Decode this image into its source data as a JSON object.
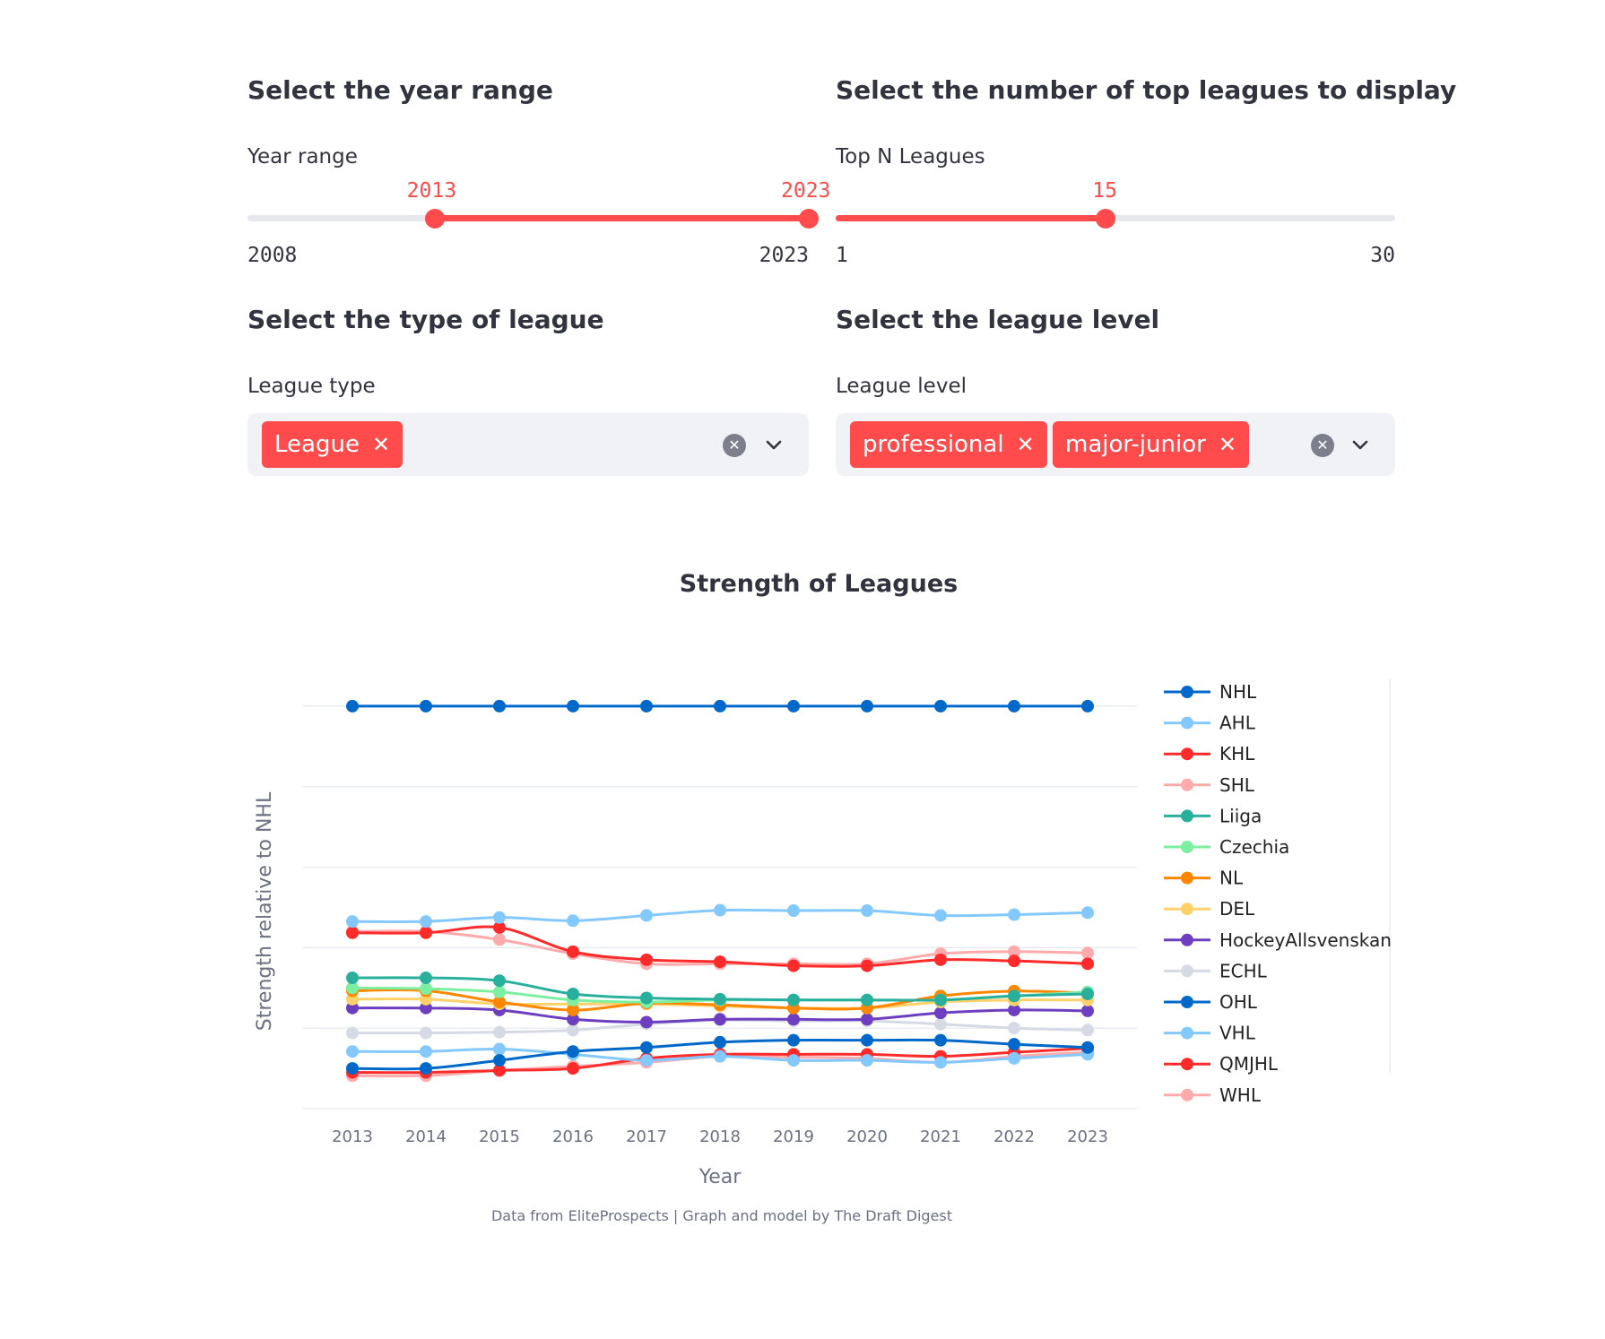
{
  "year_range": {
    "heading": "Select the year range",
    "label": "Year range",
    "min": 2008,
    "max": 2023,
    "value_low": 2013,
    "value_high": 2023,
    "min_label": "2008",
    "max_label": "2023",
    "value_low_label": "2013",
    "value_high_label": "2023"
  },
  "top_n": {
    "heading": "Select the number of top leagues to display",
    "label": "Top N Leagues",
    "min": 1,
    "max": 30,
    "value": 15,
    "min_label": "1",
    "max_label": "30",
    "value_label": "15"
  },
  "league_type": {
    "heading": "Select the type of league",
    "label": "League type",
    "selected": [
      "League"
    ],
    "remove_glyph": "✕",
    "clear_glyph": "✕",
    "icons": [
      "close-icon",
      "chevron-down-icon"
    ]
  },
  "league_level": {
    "heading": "Select the league level",
    "label": "League level",
    "selected": [
      "professional",
      "major-junior"
    ],
    "remove_glyph": "✕",
    "clear_glyph": "✕",
    "icons": [
      "close-icon",
      "chevron-down-icon"
    ]
  },
  "colors": {
    "accent": "#ff4b4b",
    "track": "#e6e8ee",
    "select_bg": "#f0f2f6",
    "grid": "#e5e7ef"
  },
  "chart_data": {
    "type": "line",
    "title": "Strength of Leagues",
    "xlabel": "Year",
    "ylabel": "Strength relative to NHL",
    "x": [
      2013,
      2014,
      2015,
      2016,
      2017,
      2018,
      2019,
      2020,
      2021,
      2022,
      2023
    ],
    "ylim": [
      0,
      1.1
    ],
    "y_gridlines": [
      0,
      0.2,
      0.4,
      0.6,
      0.8,
      1.0
    ],
    "y_tick_labels_visible": false,
    "legend_position": "right",
    "annotation": "Data from EliteProspects | Graph and model by The Draft Digest",
    "series": [
      {
        "name": "NHL",
        "color": "#0068c9",
        "values": [
          1.0,
          1.0,
          1.0,
          1.0,
          1.0,
          1.0,
          1.0,
          1.0,
          1.0,
          1.0,
          1.0
        ]
      },
      {
        "name": "AHL",
        "color": "#83c9ff",
        "values": [
          0.465,
          0.465,
          0.475,
          0.467,
          0.48,
          0.493,
          0.492,
          0.492,
          0.48,
          0.482,
          0.487
        ]
      },
      {
        "name": "KHL",
        "color": "#ff2b2b",
        "values": [
          0.437,
          0.437,
          0.45,
          0.39,
          0.37,
          0.365,
          0.355,
          0.355,
          0.37,
          0.367,
          0.36
        ]
      },
      {
        "name": "SHL",
        "color": "#ffabab",
        "values": [
          0.44,
          0.44,
          0.42,
          0.385,
          0.36,
          0.36,
          0.36,
          0.36,
          0.385,
          0.39,
          0.387
        ]
      },
      {
        "name": "Liiga",
        "color": "#29b09d",
        "values": [
          0.325,
          0.325,
          0.318,
          0.285,
          0.275,
          0.272,
          0.27,
          0.27,
          0.27,
          0.28,
          0.285
        ]
      },
      {
        "name": "Czechia",
        "color": "#7defa1",
        "values": [
          0.3,
          0.298,
          0.29,
          0.27,
          0.265,
          0.27,
          0.27,
          0.27,
          0.27,
          0.28,
          0.29
        ]
      },
      {
        "name": "NL",
        "color": "#ff8700",
        "values": [
          0.293,
          0.293,
          0.265,
          0.245,
          0.262,
          0.258,
          0.25,
          0.25,
          0.28,
          0.292,
          0.287
        ]
      },
      {
        "name": "DEL",
        "color": "#ffd16a",
        "values": [
          0.272,
          0.272,
          0.26,
          0.26,
          0.26,
          0.255,
          0.25,
          0.25,
          0.265,
          0.27,
          0.27
        ]
      },
      {
        "name": "HockeyAllsvenskan",
        "color": "#6d3fc0",
        "values": [
          0.25,
          0.25,
          0.245,
          0.222,
          0.215,
          0.222,
          0.222,
          0.222,
          0.238,
          0.245,
          0.243
        ]
      },
      {
        "name": "ECHL",
        "color": "#d5dae5",
        "values": [
          0.188,
          0.188,
          0.19,
          0.195,
          0.21,
          0.22,
          0.218,
          0.218,
          0.21,
          0.2,
          0.195
        ]
      },
      {
        "name": "OHL",
        "color": "#0068c9",
        "values": [
          0.1,
          0.1,
          0.12,
          0.142,
          0.152,
          0.165,
          0.17,
          0.17,
          0.17,
          0.16,
          0.152
        ]
      },
      {
        "name": "VHL",
        "color": "#83c9ff",
        "values": [
          0.142,
          0.142,
          0.148,
          0.135,
          0.12,
          0.13,
          0.12,
          0.12,
          0.115,
          0.125,
          0.135
        ]
      },
      {
        "name": "QMJHL",
        "color": "#ff2b2b",
        "values": [
          0.09,
          0.09,
          0.095,
          0.1,
          0.125,
          0.135,
          0.135,
          0.135,
          0.13,
          0.14,
          0.15
        ]
      },
      {
        "name": "WHL",
        "color": "#ffabab",
        "values": [
          0.082,
          0.082,
          0.095,
          0.105,
          0.115,
          0.13,
          0.128,
          0.125,
          0.115,
          0.13,
          0.14
        ]
      }
    ]
  }
}
